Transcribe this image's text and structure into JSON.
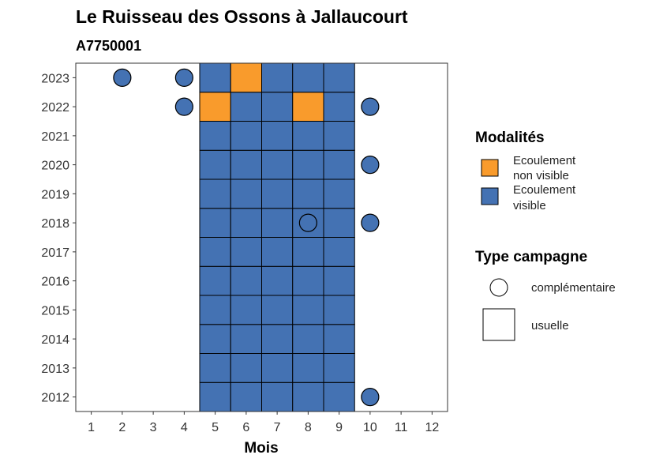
{
  "chart_data": {
    "type": "heatmap",
    "title": "Le Ruisseau des Ossons à Jallaucourt",
    "subtitle": "A7750001",
    "xlabel": "Mois",
    "ylabel": "",
    "x_ticks": [
      1,
      2,
      3,
      4,
      5,
      6,
      7,
      8,
      9,
      10,
      11,
      12
    ],
    "y_ticks": [
      2012,
      2013,
      2014,
      2015,
      2016,
      2017,
      2018,
      2019,
      2020,
      2021,
      2022,
      2023
    ],
    "xlim": [
      0.5,
      12.5
    ],
    "ylim": [
      2011.5,
      2023.5
    ],
    "grid": false,
    "legend_position": "right",
    "colors": {
      "Ecoulement non visible": "#f99b2c",
      "Ecoulement visible": "#4472b3"
    },
    "usuelle": [
      {
        "year": 2012,
        "months": [
          5,
          6,
          7,
          8,
          9
        ],
        "status": [
          "Ecoulement visible",
          "Ecoulement visible",
          "Ecoulement visible",
          "Ecoulement visible",
          "Ecoulement visible"
        ]
      },
      {
        "year": 2013,
        "months": [
          5,
          6,
          7,
          8,
          9
        ],
        "status": [
          "Ecoulement visible",
          "Ecoulement visible",
          "Ecoulement visible",
          "Ecoulement visible",
          "Ecoulement visible"
        ]
      },
      {
        "year": 2014,
        "months": [
          5,
          6,
          7,
          8,
          9
        ],
        "status": [
          "Ecoulement visible",
          "Ecoulement visible",
          "Ecoulement visible",
          "Ecoulement visible",
          "Ecoulement visible"
        ]
      },
      {
        "year": 2015,
        "months": [
          5,
          6,
          7,
          8,
          9
        ],
        "status": [
          "Ecoulement visible",
          "Ecoulement visible",
          "Ecoulement visible",
          "Ecoulement visible",
          "Ecoulement visible"
        ]
      },
      {
        "year": 2016,
        "months": [
          5,
          6,
          7,
          8,
          9
        ],
        "status": [
          "Ecoulement visible",
          "Ecoulement visible",
          "Ecoulement visible",
          "Ecoulement visible",
          "Ecoulement visible"
        ]
      },
      {
        "year": 2017,
        "months": [
          5,
          6,
          7,
          8,
          9
        ],
        "status": [
          "Ecoulement visible",
          "Ecoulement visible",
          "Ecoulement visible",
          "Ecoulement visible",
          "Ecoulement visible"
        ]
      },
      {
        "year": 2018,
        "months": [
          5,
          6,
          7,
          8,
          9
        ],
        "status": [
          "Ecoulement visible",
          "Ecoulement visible",
          "Ecoulement visible",
          "Ecoulement visible",
          "Ecoulement visible"
        ]
      },
      {
        "year": 2019,
        "months": [
          5,
          6,
          7,
          8,
          9
        ],
        "status": [
          "Ecoulement visible",
          "Ecoulement visible",
          "Ecoulement visible",
          "Ecoulement visible",
          "Ecoulement visible"
        ]
      },
      {
        "year": 2020,
        "months": [
          5,
          6,
          7,
          8,
          9
        ],
        "status": [
          "Ecoulement visible",
          "Ecoulement visible",
          "Ecoulement visible",
          "Ecoulement visible",
          "Ecoulement visible"
        ]
      },
      {
        "year": 2021,
        "months": [
          5,
          6,
          7,
          8,
          9
        ],
        "status": [
          "Ecoulement visible",
          "Ecoulement visible",
          "Ecoulement visible",
          "Ecoulement visible",
          "Ecoulement visible"
        ]
      },
      {
        "year": 2022,
        "months": [
          5,
          6,
          7,
          8,
          9
        ],
        "status": [
          "Ecoulement non visible",
          "Ecoulement visible",
          "Ecoulement visible",
          "Ecoulement non visible",
          "Ecoulement visible"
        ]
      },
      {
        "year": 2023,
        "months": [
          5,
          6,
          7,
          8,
          9
        ],
        "status": [
          "Ecoulement visible",
          "Ecoulement non visible",
          "Ecoulement visible",
          "Ecoulement visible",
          "Ecoulement visible"
        ]
      }
    ],
    "complementaire": [
      {
        "year": 2023,
        "month": 2,
        "status": "Ecoulement visible"
      },
      {
        "year": 2023,
        "month": 4,
        "status": "Ecoulement visible"
      },
      {
        "year": 2022,
        "month": 4,
        "status": "Ecoulement visible"
      },
      {
        "year": 2022,
        "month": 10,
        "status": "Ecoulement visible"
      },
      {
        "year": 2020,
        "month": 10,
        "status": "Ecoulement visible"
      },
      {
        "year": 2018,
        "month": 8,
        "status": "Ecoulement visible"
      },
      {
        "year": 2018,
        "month": 10,
        "status": "Ecoulement visible"
      },
      {
        "year": 2012,
        "month": 10,
        "status": "Ecoulement visible"
      }
    ]
  },
  "legend": {
    "modalites_title": "Modalités",
    "modalites": [
      {
        "line1": "Ecoulement",
        "line2": "non visible",
        "color": "#f99b2c"
      },
      {
        "line1": "Ecoulement",
        "line2": "visible",
        "color": "#4472b3"
      }
    ],
    "type_title": "Type campagne",
    "types": [
      {
        "label": "complémentaire",
        "shape": "circle"
      },
      {
        "label": "usuelle",
        "shape": "square"
      }
    ]
  }
}
